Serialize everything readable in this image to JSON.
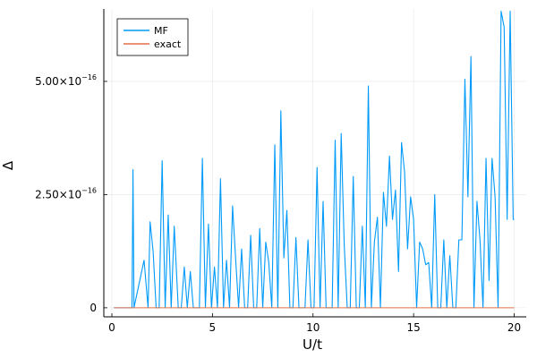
{
  "chart_data": {
    "type": "line",
    "title": "",
    "xlabel": "U/t",
    "ylabel": "Δ",
    "xlim": [
      -0.4,
      20.6
    ],
    "ylim": [
      -2e-17,
      6.6e-16
    ],
    "grid": true,
    "legend_position": "top-left",
    "x_ticks": [
      {
        "value": 0,
        "label": "0"
      },
      {
        "value": 5,
        "label": "5"
      },
      {
        "value": 10,
        "label": "10"
      },
      {
        "value": 15,
        "label": "15"
      },
      {
        "value": 20,
        "label": "20"
      }
    ],
    "y_ticks": [
      {
        "value": 0,
        "label": "0",
        "exp": ""
      },
      {
        "value": 2.5e-16,
        "label": "2.50×10",
        "exp": "−16"
      },
      {
        "value": 5e-16,
        "label": "5.00×10",
        "exp": "−16"
      }
    ],
    "series": [
      {
        "name": "MF",
        "color": "#009af9",
        "x": [
          0.1,
          1.0,
          1.05,
          1.1,
          1.6,
          1.8,
          1.9,
          2.05,
          2.2,
          2.35,
          2.5,
          2.65,
          2.8,
          2.95,
          3.1,
          3.3,
          3.45,
          3.6,
          3.75,
          3.9,
          4.05,
          4.2,
          4.35,
          4.5,
          4.65,
          4.8,
          4.95,
          5.1,
          5.25,
          5.4,
          5.55,
          5.7,
          5.85,
          6.0,
          6.15,
          6.3,
          6.45,
          6.6,
          6.75,
          6.9,
          7.05,
          7.2,
          7.35,
          7.5,
          7.65,
          7.8,
          7.95,
          8.1,
          8.25,
          8.4,
          8.55,
          8.7,
          8.85,
          9.0,
          9.15,
          9.3,
          9.45,
          9.6,
          9.75,
          9.9,
          10.05,
          10.2,
          10.35,
          10.5,
          10.65,
          10.8,
          10.95,
          11.1,
          11.25,
          11.4,
          11.55,
          11.7,
          11.85,
          12.0,
          12.15,
          12.3,
          12.45,
          12.6,
          12.75,
          12.9,
          13.05,
          13.2,
          13.35,
          13.5,
          13.65,
          13.8,
          13.95,
          14.1,
          14.25,
          14.4,
          14.55,
          14.7,
          14.85,
          15.0,
          15.15,
          15.3,
          15.45,
          15.6,
          15.75,
          15.9,
          16.05,
          16.2,
          16.35,
          16.5,
          16.65,
          16.8,
          16.95,
          17.1,
          17.25,
          17.4,
          17.55,
          17.7,
          17.85,
          18.0,
          18.15,
          18.3,
          18.45,
          18.6,
          18.75,
          18.9,
          19.05,
          19.2,
          19.35,
          19.5,
          19.65,
          19.8,
          19.95,
          20.0
        ],
        "values": [
          0,
          0,
          3.05e-16,
          0,
          1.05e-16,
          0,
          1.9e-16,
          1.25e-16,
          0,
          0,
          3.25e-16,
          0,
          2.05e-16,
          0,
          1.8e-16,
          0,
          0,
          9e-17,
          0,
          8e-17,
          0,
          0,
          0,
          3.3e-16,
          0,
          1.85e-16,
          0,
          9e-17,
          0,
          2.85e-16,
          0,
          1.05e-16,
          0,
          2.25e-16,
          1.1e-16,
          0,
          1.3e-16,
          0,
          0,
          1.6e-16,
          0,
          0,
          1.75e-16,
          0,
          1.45e-16,
          1e-16,
          0,
          3.6e-16,
          0,
          4.35e-16,
          1.1e-16,
          2.15e-16,
          0,
          0,
          1.55e-16,
          0,
          0,
          0,
          1.5e-16,
          0,
          0,
          3.1e-16,
          0,
          2.35e-16,
          0,
          0,
          0,
          3.7e-16,
          0,
          3.85e-16,
          1.4e-16,
          0,
          0,
          2.9e-16,
          0,
          0,
          1.8e-16,
          0,
          4.9e-16,
          0,
          1.45e-16,
          2e-16,
          0,
          2.55e-16,
          1.8e-16,
          3.35e-16,
          1.95e-16,
          2.6e-16,
          8e-17,
          3.65e-16,
          3e-16,
          1.3e-16,
          2.45e-16,
          1.95e-16,
          0,
          1.45e-16,
          1.3e-16,
          9.5e-17,
          1e-16,
          0,
          2.5e-16,
          0,
          0,
          1.5e-16,
          0,
          1.15e-16,
          0,
          0,
          1.5e-16,
          1.5e-16,
          5.05e-16,
          2.45e-16,
          5.55e-16,
          0,
          2.35e-16,
          1.5e-16,
          0,
          3.3e-16,
          6e-17,
          3.3e-16,
          2.45e-16,
          0,
          6.55e-16,
          6.2e-16,
          1.95e-16,
          6.55e-16,
          1.95e-16,
          1.95e-16
        ]
      },
      {
        "name": "exact",
        "color": "#e26f46",
        "x": [
          0.1,
          20.0
        ],
        "values": [
          0,
          0
        ]
      }
    ]
  }
}
